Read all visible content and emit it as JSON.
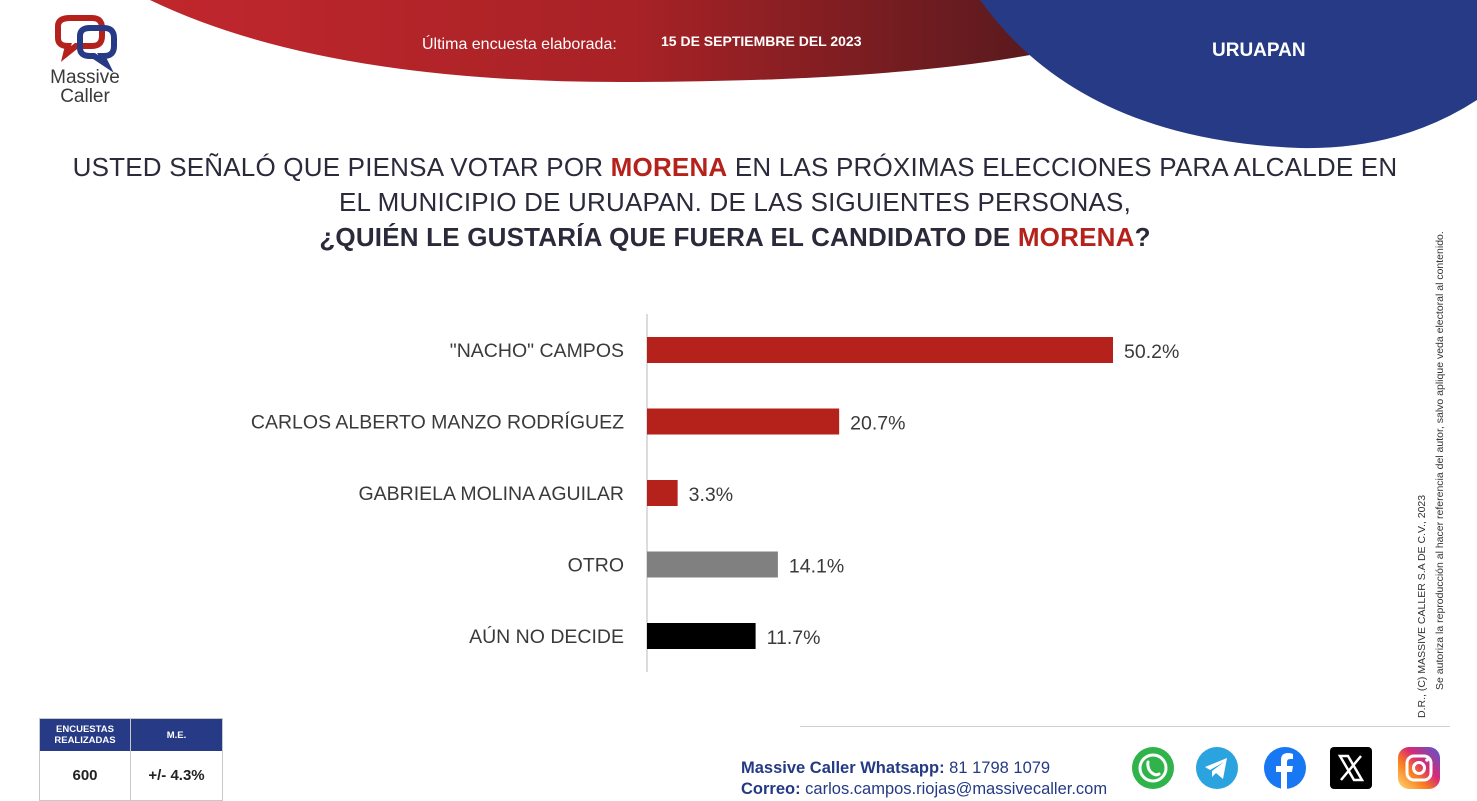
{
  "logo": {
    "line1": "Massive",
    "line2": "Caller"
  },
  "header": {
    "survey_label": "Última encuesta elaborada:",
    "survey_date": "15 DE SEPTIEMBRE DEL 2023",
    "city": "URUAPAN"
  },
  "question": {
    "line1_a": "USTED SEÑALÓ QUE PIENSA VOTAR POR ",
    "line1_b": "MORENA",
    "line1_c": " EN LAS PRÓXIMAS ELECCIONES PARA ALCALDE EN",
    "line2": "EL MUNICIPIO DE URUAPAN.  DE LAS SIGUIENTES PERSONAS,",
    "line3_a": "¿QUIÉN LE GUSTARÍA QUE FUERA EL CANDIDATO DE ",
    "line3_b": "MORENA",
    "line3_c": "?"
  },
  "chart_data": {
    "type": "bar",
    "orientation": "horizontal",
    "categories": [
      "\"NACHO\" CAMPOS",
      "CARLOS ALBERTO MANZO RODRÍGUEZ",
      "GABRIELA MOLINA AGUILAR",
      "OTRO",
      "AÚN NO DECIDE"
    ],
    "values": [
      50.2,
      20.7,
      3.3,
      14.1,
      11.7
    ],
    "labels": [
      "50.2%",
      "20.7%",
      "3.3%",
      "14.1%",
      "11.7%"
    ],
    "colors": [
      "#b5221b",
      "#b5221b",
      "#b5221b",
      "#808080",
      "#000000"
    ],
    "xlim": [
      0,
      50.2
    ]
  },
  "copyright": {
    "line1": "D.R., (C) MASSIVE CALLER S.A DE C.V., 2023",
    "line2": "Se autoriza la reproducción al hacer referencia del autor, salvo aplique veda electoral al contenido."
  },
  "stats_table": {
    "col1_header": "ENCUESTAS REALIZADAS",
    "col2_header": "M.E.",
    "col1_value": "600",
    "col2_value": "+/- 4.3%"
  },
  "contact": {
    "whatsapp_label": "Massive Caller Whatsapp:",
    "whatsapp_number": " 81 1798 1079",
    "email_label": "Correo:",
    "email": " carlos.campos.riojas@massivecaller.com"
  },
  "social_icons": [
    "whatsapp-icon",
    "telegram-icon",
    "facebook-icon",
    "x-icon",
    "instagram-icon"
  ],
  "colors": {
    "red": "#b5221b",
    "navy": "#263a85",
    "gray": "#808080"
  }
}
